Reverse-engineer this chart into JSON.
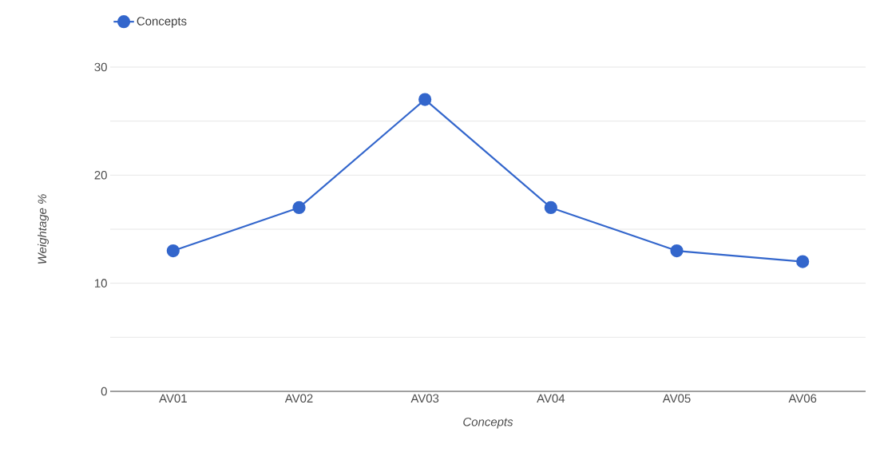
{
  "chart_data": {
    "type": "line",
    "xlabel": "Concepts",
    "ylabel": "Weightage %",
    "categories": [
      "AV01",
      "AV02",
      "AV03",
      "AV04",
      "AV05",
      "AV06"
    ],
    "series": [
      {
        "name": "Concepts",
        "color": "#3366cc",
        "values": [
          13,
          17,
          27,
          17,
          13,
          12
        ]
      }
    ],
    "ylim": [
      0,
      30
    ],
    "yticks": [
      0,
      {
        "value": 5,
        "label": null
      },
      10,
      {
        "value": 15,
        "label": null
      },
      20,
      {
        "value": 25,
        "label": null
      },
      30
    ],
    "grid": "y",
    "legend": "top left",
    "marker": "circle",
    "line_style": "solid"
  }
}
